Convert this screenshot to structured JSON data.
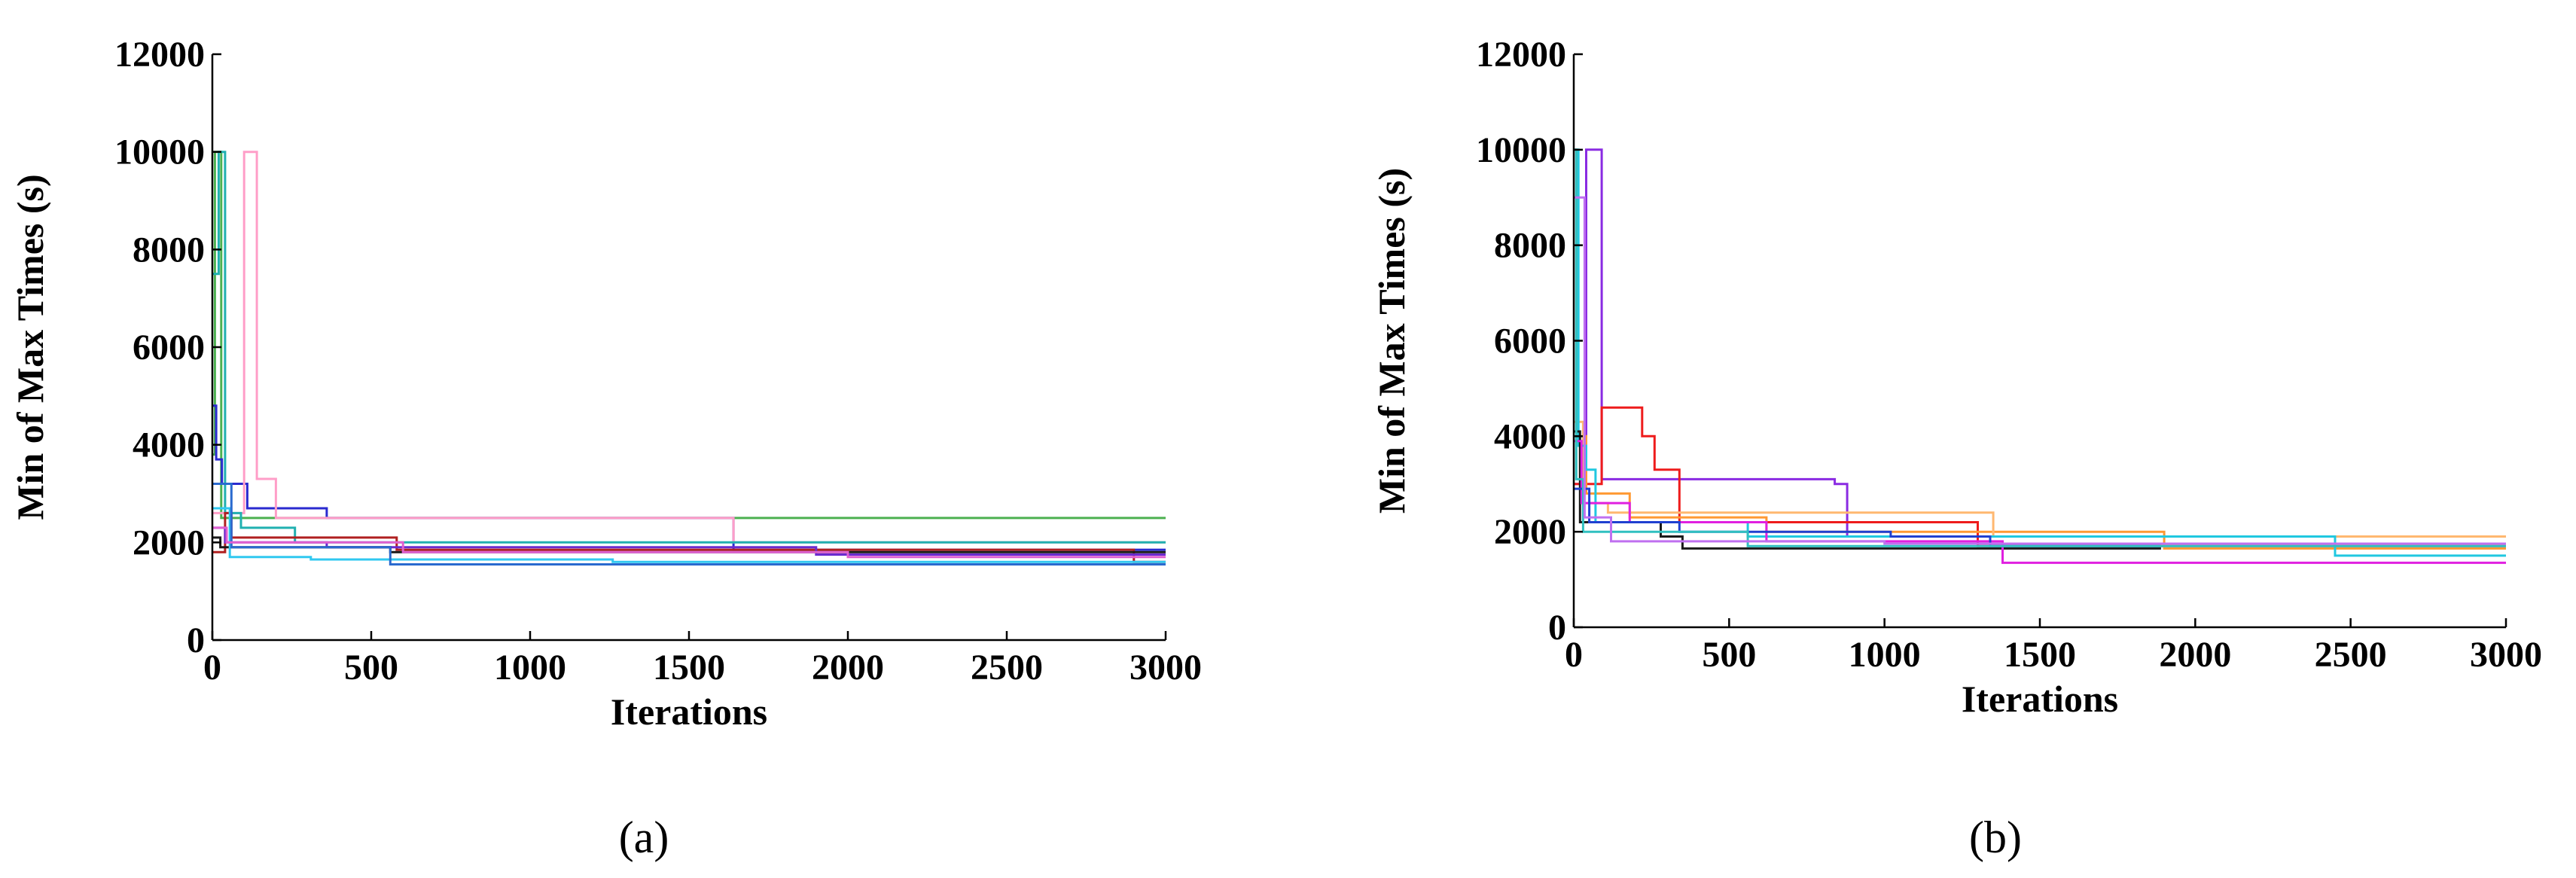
{
  "chart_data": [
    {
      "type": "line",
      "panel_label": "(a)",
      "title": "",
      "xlabel": "Iterations",
      "ylabel": "Min of Max Times (s)",
      "xlim": [
        0,
        3000
      ],
      "ylim": [
        0,
        12000
      ],
      "xticks": [
        0,
        500,
        1000,
        1500,
        2000,
        2500,
        3000
      ],
      "yticks": [
        0,
        2000,
        4000,
        6000,
        8000,
        10000,
        12000
      ],
      "grid": false,
      "legend": "none",
      "series": [
        {
          "color": "#4cb050",
          "points": [
            [
              0,
              3800
            ],
            [
              8,
              3800
            ],
            [
              8,
              10000
            ],
            [
              28,
              10000
            ],
            [
              28,
              2500
            ],
            [
              3000,
              2500
            ]
          ]
        },
        {
          "color": "#2a2acf",
          "points": [
            [
              0,
              4800
            ],
            [
              12,
              4800
            ],
            [
              12,
              3700
            ],
            [
              30,
              3700
            ],
            [
              30,
              3200
            ],
            [
              110,
              3200
            ],
            [
              110,
              2700
            ],
            [
              360,
              2700
            ],
            [
              360,
              2500
            ],
            [
              1640,
              2500
            ],
            [
              1640,
              1850
            ],
            [
              3000,
              1850
            ]
          ]
        },
        {
          "color": "#ff9ec8",
          "points": [
            [
              0,
              2600
            ],
            [
              100,
              2600
            ],
            [
              100,
              10000
            ],
            [
              140,
              10000
            ],
            [
              140,
              3300
            ],
            [
              200,
              3300
            ],
            [
              200,
              2500
            ],
            [
              1640,
              2500
            ],
            [
              1640,
              2000
            ],
            [
              3000,
              2000
            ]
          ]
        },
        {
          "color": "#20b0b0",
          "points": [
            [
              0,
              7500
            ],
            [
              20,
              7500
            ],
            [
              20,
              10000
            ],
            [
              40,
              10000
            ],
            [
              40,
              2600
            ],
            [
              90,
              2600
            ],
            [
              90,
              2300
            ],
            [
              260,
              2300
            ],
            [
              260,
              2000
            ],
            [
              3000,
              2000
            ]
          ]
        },
        {
          "color": "#b02020",
          "points": [
            [
              0,
              1800
            ],
            [
              40,
              1800
            ],
            [
              40,
              2600
            ],
            [
              60,
              2600
            ],
            [
              60,
              2100
            ],
            [
              580,
              2100
            ],
            [
              580,
              1850
            ],
            [
              2900,
              1850
            ],
            [
              2900,
              1600
            ],
            [
              3000,
              1600
            ]
          ]
        },
        {
          "color": "#6a2acf",
          "points": [
            [
              0,
              2300
            ],
            [
              40,
              2300
            ],
            [
              40,
              2000
            ],
            [
              360,
              2000
            ],
            [
              360,
              1900
            ],
            [
              1900,
              1900
            ],
            [
              1900,
              1750
            ],
            [
              3000,
              1750
            ]
          ]
        },
        {
          "color": "#1a1a1a",
          "points": [
            [
              0,
              2100
            ],
            [
              25,
              2100
            ],
            [
              25,
              1900
            ],
            [
              560,
              1900
            ],
            [
              560,
              1800
            ],
            [
              3000,
              1800
            ]
          ]
        },
        {
          "color": "#30c8f0",
          "points": [
            [
              0,
              2700
            ],
            [
              55,
              2700
            ],
            [
              55,
              1700
            ],
            [
              310,
              1700
            ],
            [
              310,
              1650
            ],
            [
              1260,
              1650
            ],
            [
              1260,
              1600
            ],
            [
              3000,
              1600
            ]
          ]
        },
        {
          "color": "#2a6acf",
          "points": [
            [
              0,
              3200
            ],
            [
              60,
              3200
            ],
            [
              60,
              1900
            ],
            [
              560,
              1900
            ],
            [
              560,
              1550
            ],
            [
              3000,
              1550
            ]
          ]
        },
        {
          "color": "#e060d0",
          "points": [
            [
              0,
              2300
            ],
            [
              45,
              2300
            ],
            [
              45,
              2000
            ],
            [
              600,
              2000
            ],
            [
              600,
              1800
            ],
            [
              2000,
              1800
            ],
            [
              2000,
              1700
            ],
            [
              3000,
              1700
            ]
          ]
        }
      ]
    },
    {
      "type": "line",
      "panel_label": "(b)",
      "title": "",
      "xlabel": "Iterations",
      "ylabel": "Min of Max Times (s)",
      "xlim": [
        0,
        3000
      ],
      "ylim": [
        0,
        12000
      ],
      "xticks": [
        0,
        500,
        1000,
        1500,
        2000,
        2500,
        3000
      ],
      "yticks": [
        0,
        2000,
        4000,
        6000,
        8000,
        10000,
        12000
      ],
      "grid": false,
      "legend": "none",
      "series": [
        {
          "color": "#8a2be2",
          "points": [
            [
              0,
              3000
            ],
            [
              40,
              3000
            ],
            [
              40,
              10000
            ],
            [
              90,
              10000
            ],
            [
              90,
              3100
            ],
            [
              840,
              3100
            ],
            [
              840,
              3000
            ],
            [
              880,
              3000
            ],
            [
              880,
              1900
            ],
            [
              3000,
              1900
            ]
          ]
        },
        {
          "color": "#ee1c1c",
          "points": [
            [
              0,
              3000
            ],
            [
              90,
              3000
            ],
            [
              90,
              4600
            ],
            [
              220,
              4600
            ],
            [
              220,
              4000
            ],
            [
              260,
              4000
            ],
            [
              260,
              3300
            ],
            [
              340,
              3300
            ],
            [
              340,
              2200
            ],
            [
              1300,
              2200
            ],
            [
              1300,
              1700
            ],
            [
              3000,
              1700
            ]
          ]
        },
        {
          "color": "#ff9933",
          "points": [
            [
              0,
              10000
            ],
            [
              10,
              10000
            ],
            [
              10,
              4000
            ],
            [
              40,
              4000
            ],
            [
              40,
              2800
            ],
            [
              180,
              2800
            ],
            [
              180,
              2300
            ],
            [
              620,
              2300
            ],
            [
              620,
              2000
            ],
            [
              1900,
              2000
            ],
            [
              1900,
              1650
            ],
            [
              3000,
              1650
            ]
          ]
        },
        {
          "color": "#ffb870",
          "points": [
            [
              0,
              4300
            ],
            [
              30,
              4300
            ],
            [
              30,
              2600
            ],
            [
              110,
              2600
            ],
            [
              110,
              2400
            ],
            [
              1350,
              2400
            ],
            [
              1350,
              1900
            ],
            [
              3000,
              1900
            ]
          ]
        },
        {
          "color": "#20c8e0",
          "points": [
            [
              0,
              10000
            ],
            [
              15,
              10000
            ],
            [
              15,
              3800
            ],
            [
              40,
              3800
            ],
            [
              40,
              3300
            ],
            [
              70,
              3300
            ],
            [
              70,
              2200
            ],
            [
              560,
              2200
            ],
            [
              560,
              1900
            ],
            [
              2450,
              1900
            ],
            [
              2450,
              1500
            ],
            [
              3000,
              1500
            ]
          ]
        },
        {
          "color": "#1a1a1a",
          "points": [
            [
              0,
              4100
            ],
            [
              20,
              4100
            ],
            [
              20,
              2200
            ],
            [
              280,
              2200
            ],
            [
              280,
              1900
            ],
            [
              350,
              1900
            ],
            [
              350,
              1650
            ],
            [
              1890,
              1650
            ]
          ]
        },
        {
          "color": "#e020e0",
          "points": [
            [
              0,
              3900
            ],
            [
              25,
              3900
            ],
            [
              25,
              2600
            ],
            [
              180,
              2600
            ],
            [
              180,
              2200
            ],
            [
              620,
              2200
            ],
            [
              620,
              1800
            ],
            [
              1380,
              1800
            ],
            [
              1380,
              1350
            ],
            [
              3000,
              1350
            ]
          ]
        },
        {
          "color": "#2040d0",
          "points": [
            [
              0,
              2900
            ],
            [
              50,
              2900
            ],
            [
              50,
              2200
            ],
            [
              340,
              2200
            ],
            [
              340,
              2000
            ],
            [
              1020,
              2000
            ],
            [
              1020,
              1900
            ],
            [
              1340,
              1900
            ],
            [
              1340,
              1700
            ],
            [
              1890,
              1700
            ]
          ]
        },
        {
          "color": "#30c0c0",
          "points": [
            [
              0,
              10000
            ],
            [
              8,
              10000
            ],
            [
              8,
              3100
            ],
            [
              30,
              3100
            ],
            [
              30,
              2000
            ],
            [
              560,
              2000
            ],
            [
              560,
              1700
            ],
            [
              3000,
              1700
            ]
          ]
        },
        {
          "color": "#c070f0",
          "points": [
            [
              0,
              9000
            ],
            [
              35,
              9000
            ],
            [
              35,
              2300
            ],
            [
              120,
              2300
            ],
            [
              120,
              1800
            ],
            [
              1000,
              1800
            ],
            [
              1000,
              1750
            ],
            [
              3000,
              1750
            ]
          ]
        }
      ]
    }
  ]
}
